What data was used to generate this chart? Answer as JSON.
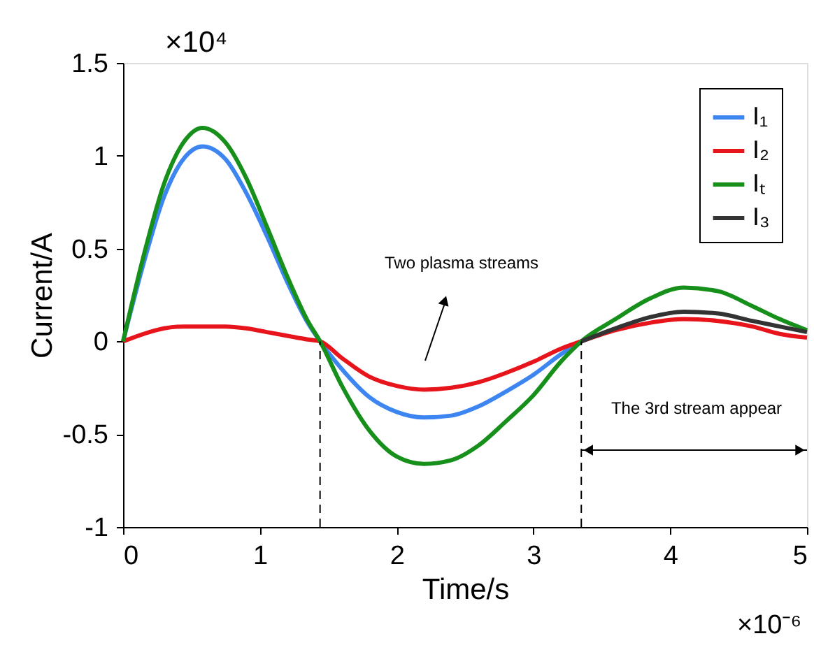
{
  "chart_data": {
    "type": "line",
    "xlabel": "Time/s",
    "ylabel": "Current/A",
    "xlim": [
      0,
      5
    ],
    "xticks": [
      0,
      1,
      2,
      3,
      4,
      5
    ],
    "ylim": [
      -1,
      1.5
    ],
    "yticks": [
      -1,
      -0.5,
      0,
      0.5,
      1,
      1.5
    ],
    "grid": false,
    "legend": "top right",
    "line_style": "solid",
    "marker": "none",
    "series": [
      {
        "name": "I₁",
        "color": "#3d85f0",
        "x": [
          0,
          0.15,
          0.3,
          0.45,
          0.58,
          0.75,
          0.9,
          1.05,
          1.2,
          1.35,
          1.44,
          1.6,
          1.8,
          2.0,
          2.2,
          2.4,
          2.6,
          2.8,
          3.0,
          3.2,
          3.35
        ],
        "values": [
          0,
          0.42,
          0.78,
          0.99,
          1.05,
          0.98,
          0.8,
          0.57,
          0.32,
          0.1,
          0,
          -0.15,
          -0.3,
          -0.38,
          -0.41,
          -0.4,
          -0.35,
          -0.27,
          -0.18,
          -0.07,
          0
        ]
      },
      {
        "name": "I₂",
        "color": "#e8141b",
        "x": [
          0,
          0.15,
          0.3,
          0.45,
          0.58,
          0.75,
          0.9,
          1.05,
          1.2,
          1.35,
          1.44,
          1.6,
          1.8,
          2.0,
          2.2,
          2.4,
          2.6,
          2.8,
          3.0,
          3.2,
          3.35,
          3.6,
          3.85,
          4.1,
          4.35,
          4.6,
          4.8,
          5
        ],
        "values": [
          0,
          0.04,
          0.07,
          0.08,
          0.08,
          0.08,
          0.07,
          0.05,
          0.03,
          0.01,
          0,
          -0.09,
          -0.19,
          -0.24,
          -0.26,
          -0.25,
          -0.22,
          -0.17,
          -0.11,
          -0.04,
          0,
          0.06,
          0.1,
          0.12,
          0.11,
          0.08,
          0.04,
          0.02
        ]
      },
      {
        "name": "Iₜ",
        "color": "#16901a",
        "x": [
          0,
          0.15,
          0.3,
          0.45,
          0.58,
          0.75,
          0.9,
          1.05,
          1.2,
          1.35,
          1.44,
          1.6,
          1.8,
          2.0,
          2.2,
          2.4,
          2.6,
          2.8,
          3.0,
          3.2,
          3.35,
          3.6,
          3.85,
          4.1,
          4.35,
          4.6,
          4.8,
          5
        ],
        "values": [
          0,
          0.46,
          0.85,
          1.08,
          1.15,
          1.07,
          0.88,
          0.62,
          0.35,
          0.11,
          0,
          -0.24,
          -0.48,
          -0.62,
          -0.66,
          -0.64,
          -0.56,
          -0.43,
          -0.29,
          -0.11,
          0,
          0.12,
          0.23,
          0.29,
          0.27,
          0.19,
          0.12,
          0.06
        ]
      },
      {
        "name": "I₃",
        "color": "#333333",
        "x": [
          3.35,
          3.6,
          3.85,
          4.1,
          4.35,
          4.6,
          4.8,
          5
        ],
        "values": [
          0,
          0.07,
          0.13,
          0.16,
          0.15,
          0.11,
          0.08,
          0.05
        ]
      }
    ],
    "ref_lines": [
      {
        "axis": "x",
        "value": 1.44,
        "line_style": "dashed",
        "color": "#000000"
      },
      {
        "axis": "x",
        "value": 3.35,
        "line_style": "dashed",
        "color": "#000000"
      }
    ],
    "annotations": [
      "×10⁴",
      "×10⁻⁶",
      "Two plasma streams",
      "The 3rd stream appear"
    ]
  }
}
